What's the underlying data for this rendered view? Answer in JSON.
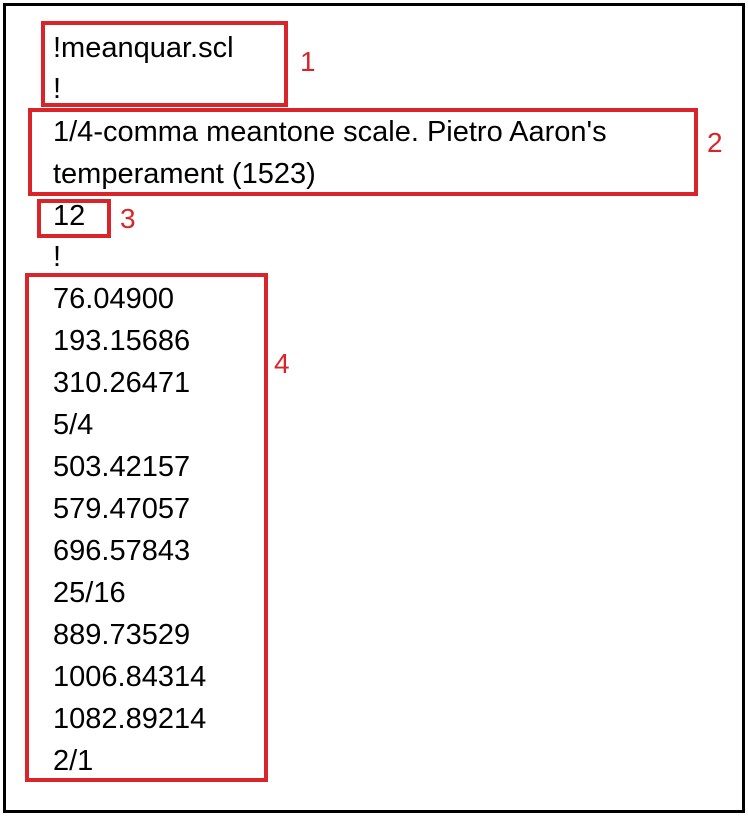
{
  "file_lines": {
    "filename": "!meanquar.scl",
    "comment_1": "!",
    "description_line_1": "1/4-comma meantone scale. Pietro Aaron's",
    "description_line_2": "temperament (1523)",
    "note_count": "12",
    "comment_2": "!",
    "pitches": [
      "76.04900",
      "193.15686",
      "310.26471",
      "5/4",
      "503.42157",
      "579.47057",
      "696.57843",
      "25/16",
      "889.73529",
      "1006.84314",
      "1082.89214",
      "2/1"
    ]
  },
  "annotations": {
    "label_1": "1",
    "label_2": "2",
    "label_3": "3",
    "label_4": "4"
  },
  "colors": {
    "annotation": "#d9252a",
    "text": "#000000",
    "border": "#000000"
  }
}
